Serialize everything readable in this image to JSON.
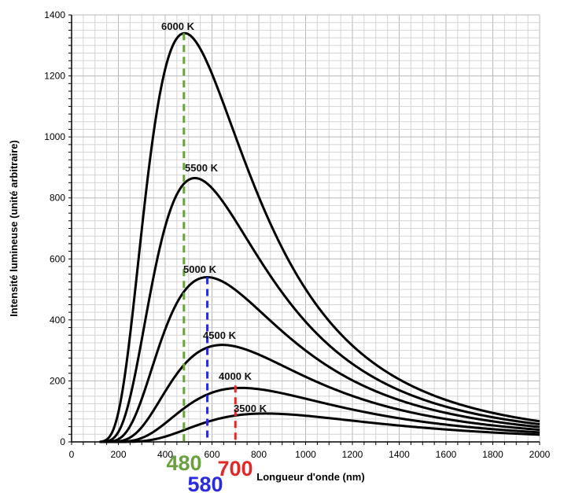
{
  "chart_data": {
    "type": "line",
    "title": "",
    "xlabel": "Longueur d'onde (nm)",
    "ylabel": "Intensité lumineuse (unité arbitraire)",
    "xlim": [
      0,
      2000
    ],
    "ylim": [
      0,
      1400
    ],
    "xticks": [
      0,
      200,
      400,
      600,
      800,
      1000,
      1200,
      1400,
      1600,
      1800,
      2000
    ],
    "yticks": [
      0,
      200,
      400,
      600,
      800,
      1000,
      1200,
      1400
    ],
    "grid": true,
    "series": [
      {
        "name": "6000 K",
        "temperature": 6000,
        "peak_x": 480,
        "peak_y": 1340
      },
      {
        "name": "5500 K",
        "temperature": 5500,
        "peak_x": 525,
        "peak_y": 865
      },
      {
        "name": "5000 K",
        "temperature": 5000,
        "peak_x": 580,
        "peak_y": 540
      },
      {
        "name": "4500 K",
        "temperature": 4500,
        "peak_x": 645,
        "peak_y": 318
      },
      {
        "name": "4000 K",
        "temperature": 4000,
        "peak_x": 725,
        "peak_y": 177
      },
      {
        "name": "3500 K",
        "temperature": 3500,
        "peak_x": 830,
        "peak_y": 93
      }
    ],
    "annotations": [
      {
        "text": "480",
        "x": 480,
        "color": "#6aa040",
        "peak_y": 1340
      },
      {
        "text": "580",
        "x": 580,
        "color": "#2a2ae0",
        "peak_y": 540
      },
      {
        "text": "700",
        "x": 700,
        "color": "#e02a2a",
        "peak_y": 185
      }
    ],
    "line_color": "#000000"
  }
}
